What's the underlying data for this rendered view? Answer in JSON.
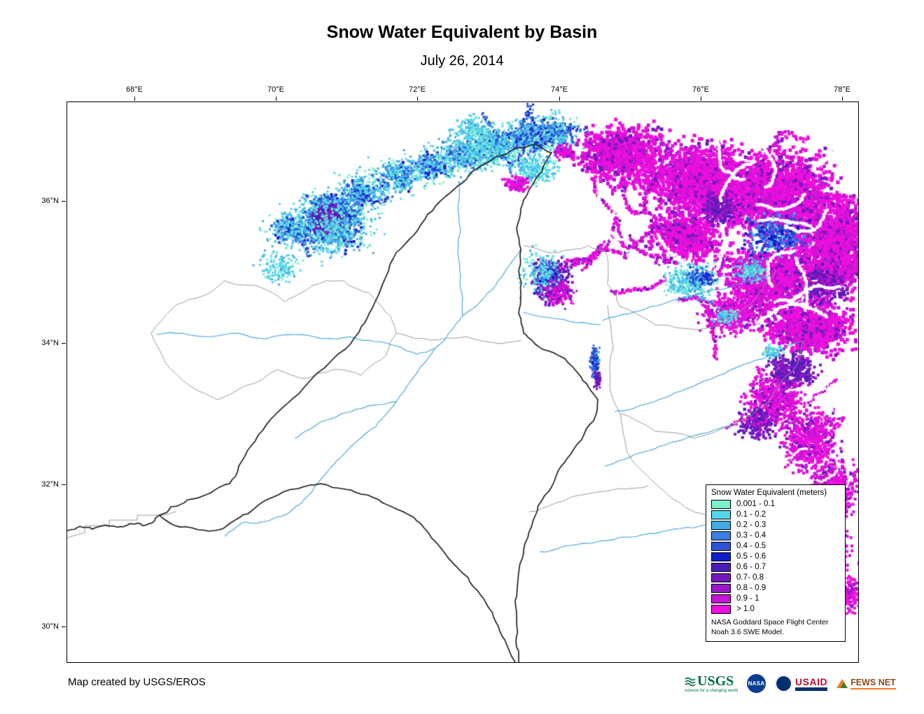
{
  "title": "Snow Water Equivalent by Basin",
  "subtitle": "July 26, 2014",
  "axes": {
    "lon_ticks": [
      "68°E",
      "70°E",
      "72°E",
      "74°E",
      "76°E",
      "78°E"
    ],
    "lat_ticks": [
      "36°N",
      "34°N",
      "32°N",
      "30°N"
    ]
  },
  "legend": {
    "title": "Snow Water Equivalent (meters)",
    "entries": [
      {
        "label": "0.001 - 0.1",
        "color": "#7BEFCE"
      },
      {
        "label": "0.1 - 0.2",
        "color": "#52D7EE"
      },
      {
        "label": "0.2 - 0.3",
        "color": "#41ACE8"
      },
      {
        "label": "0.3 - 0.4",
        "color": "#3E7EE6"
      },
      {
        "label": "0.4 - 0.5",
        "color": "#2C52D8"
      },
      {
        "label": "0.5 - 0.6",
        "color": "#101DC8"
      },
      {
        "label": "0.6 - 0.7",
        "color": "#4A1CB8"
      },
      {
        "label": "0.7- 0.8",
        "color": "#7318BE"
      },
      {
        "label": "0.8 - 0.9",
        "color": "#9917C7"
      },
      {
        "label": "0.9 - 1",
        "color": "#C315D3"
      },
      {
        "label": "> 1.0",
        "color": "#EE0FDE"
      }
    ],
    "attribution": [
      "NASA Goddard Space Flight Center",
      "Noah 3.6 SWE Model."
    ]
  },
  "credit": "Map created by USGS/EROS",
  "logos": {
    "usgs": {
      "text": "USGS",
      "tagline": "science for a changing world"
    },
    "nasa": {
      "text": "NASA"
    },
    "usaid": {
      "text": "USAID"
    },
    "fews": {
      "text": "FEWS NET"
    }
  }
}
